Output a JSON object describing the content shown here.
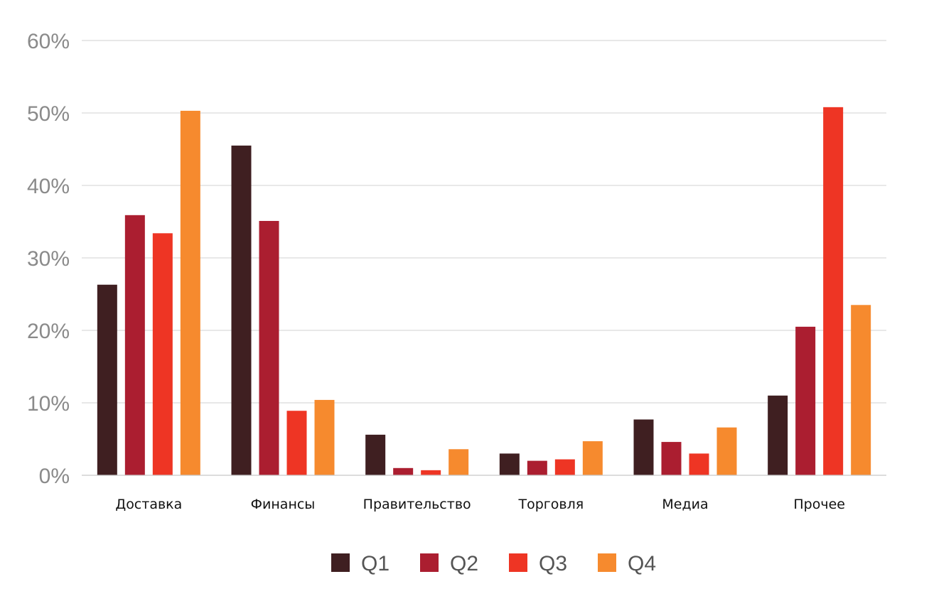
{
  "chart_data": {
    "type": "bar",
    "title": "",
    "xlabel": "",
    "ylabel": "",
    "ylim": [
      0,
      60
    ],
    "y_ticks": [
      0,
      10,
      20,
      30,
      40,
      50,
      60
    ],
    "y_tick_labels": [
      "0%",
      "10%",
      "20%",
      "30%",
      "40%",
      "50%",
      "60%"
    ],
    "grid": true,
    "legend_position": "bottom",
    "categories": [
      "Доставка",
      "Финансы",
      "Правительство",
      "Торговля",
      "Медиа",
      "Прочее"
    ],
    "series": [
      {
        "name": "Q1",
        "color": "#3f1f21",
        "values": [
          26.3,
          45.5,
          5.6,
          3.0,
          7.7,
          11.0
        ]
      },
      {
        "name": "Q2",
        "color": "#ab1e30",
        "values": [
          35.9,
          35.1,
          1.0,
          2.0,
          4.6,
          20.5
        ]
      },
      {
        "name": "Q3",
        "color": "#ee3524",
        "values": [
          33.4,
          8.9,
          0.7,
          2.2,
          3.0,
          50.8
        ]
      },
      {
        "name": "Q4",
        "color": "#f68a2e",
        "values": [
          50.3,
          10.4,
          3.6,
          4.7,
          6.6,
          23.5
        ]
      }
    ]
  }
}
